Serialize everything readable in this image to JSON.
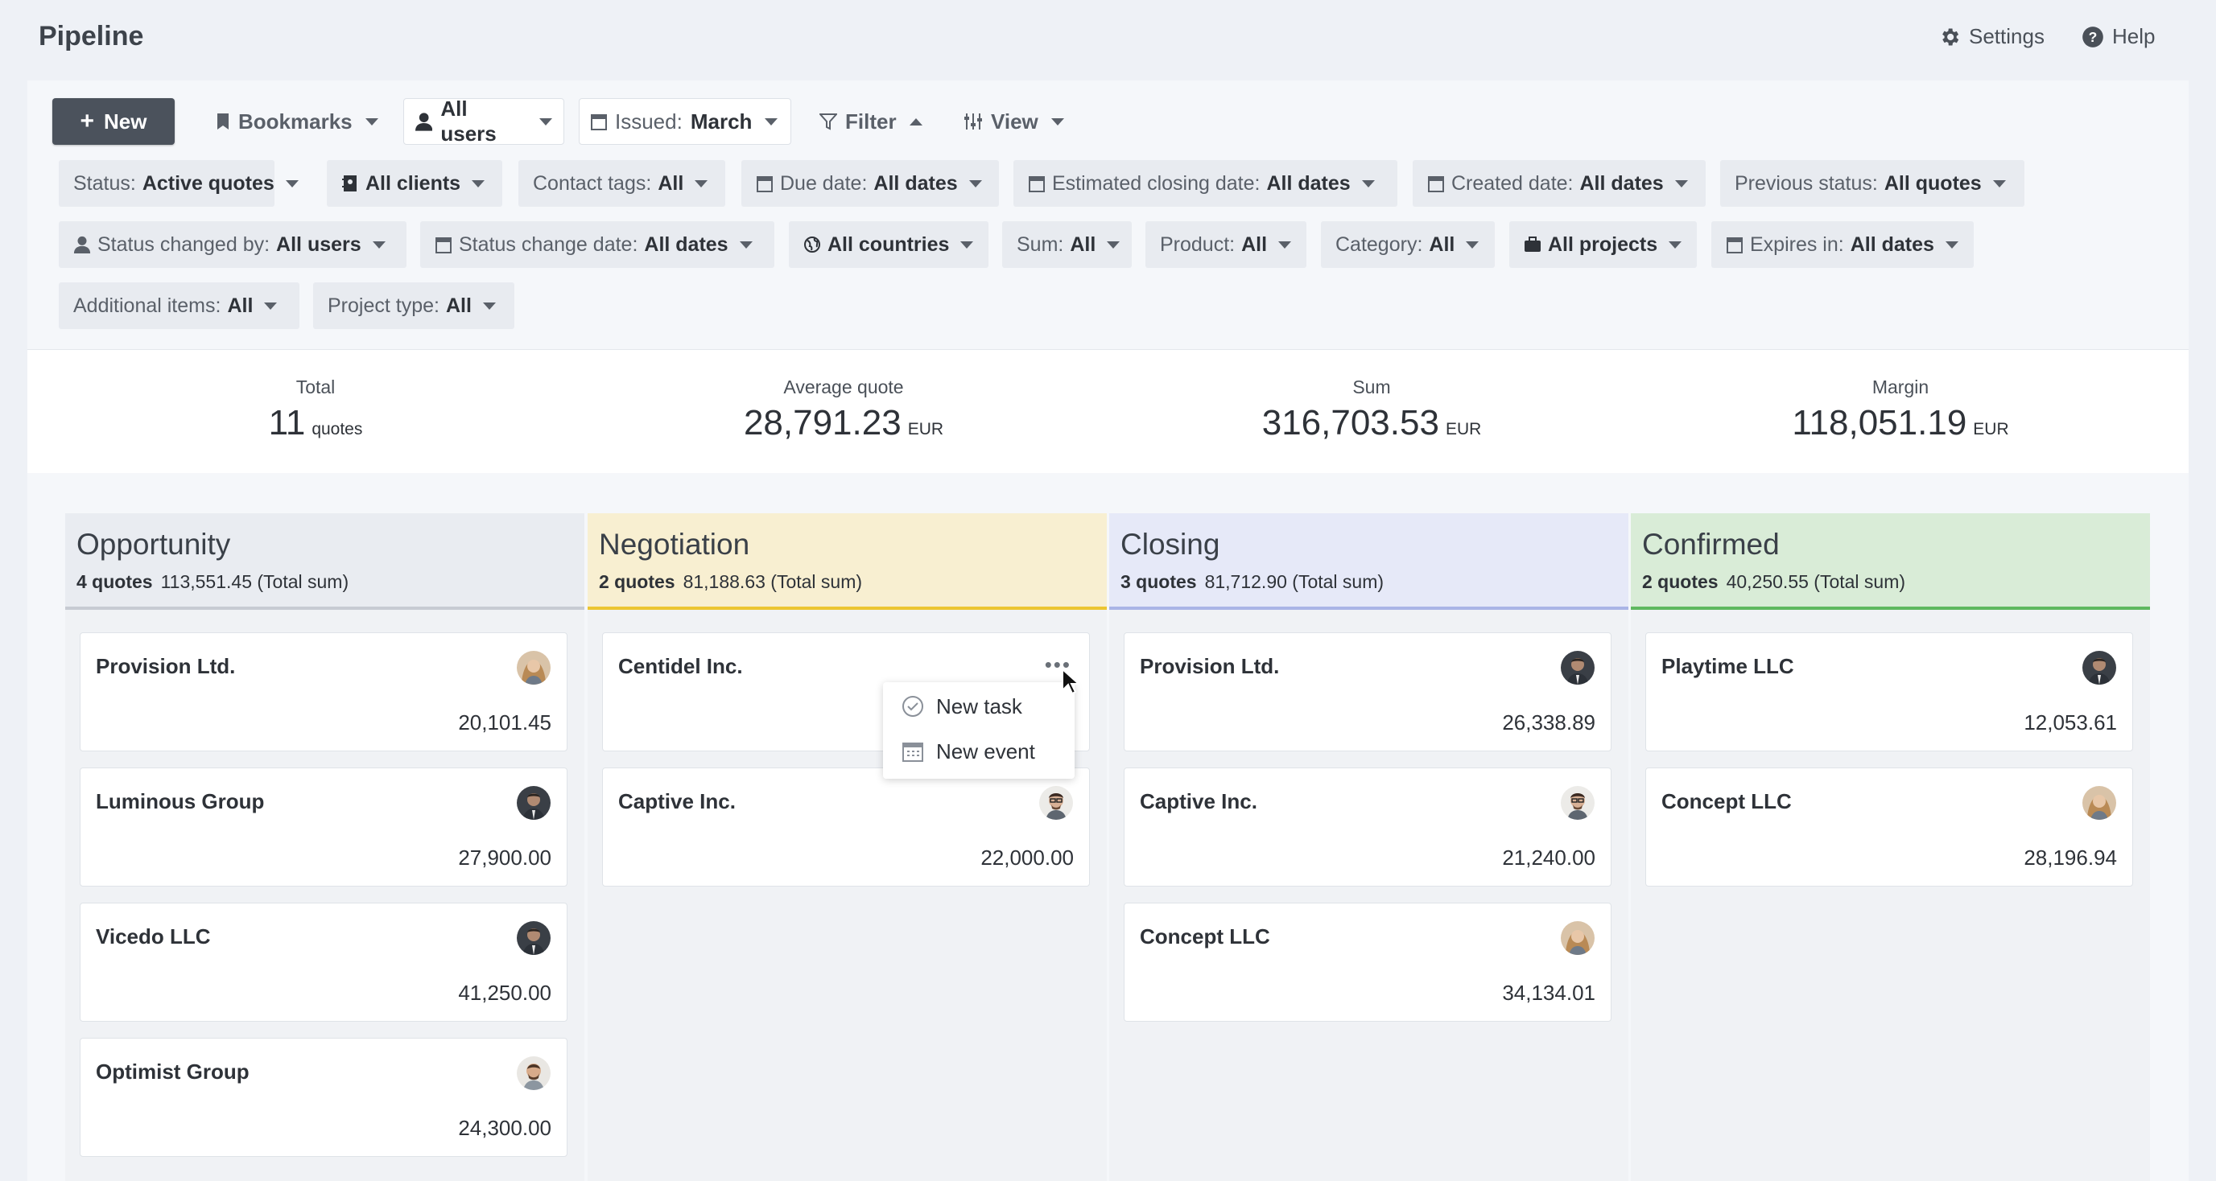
{
  "header": {
    "title": "Pipeline",
    "settings_label": "Settings",
    "help_label": "Help"
  },
  "toolbar": {
    "new_label": "New",
    "bookmarks_label": "Bookmarks",
    "users_label": "All users",
    "issued_prefix": "Issued:",
    "issued_value": "March",
    "filter_label": "Filter",
    "view_label": "View"
  },
  "filters": [
    {
      "prefix": "Status:",
      "value": "Active quotes",
      "icon": ""
    },
    {
      "prefix": "",
      "value": "All clients",
      "icon": "contact-book-icon"
    },
    {
      "prefix": "Contact tags:",
      "value": "All",
      "icon": ""
    },
    {
      "prefix": "Due date:",
      "value": "All dates",
      "icon": "calendar-icon"
    },
    {
      "prefix": "Estimated closing date:",
      "value": "All dates",
      "icon": "calendar-icon"
    },
    {
      "prefix": "Created date:",
      "value": "All dates",
      "icon": "calendar-icon"
    },
    {
      "prefix": "Previous status:",
      "value": "All quotes",
      "icon": ""
    },
    {
      "prefix": "Status changed by:",
      "value": "All users",
      "icon": "user-icon"
    },
    {
      "prefix": "Status change date:",
      "value": "All dates",
      "icon": "calendar-icon"
    },
    {
      "prefix": "",
      "value": "All countries",
      "icon": "globe-icon"
    },
    {
      "prefix": "Sum:",
      "value": "All",
      "icon": ""
    },
    {
      "prefix": "Product:",
      "value": "All",
      "icon": ""
    },
    {
      "prefix": "Category:",
      "value": "All",
      "icon": ""
    },
    {
      "prefix": "",
      "value": "All projects",
      "icon": "briefcase-icon"
    },
    {
      "prefix": "Expires in:",
      "value": "All dates",
      "icon": "calendar-icon"
    },
    {
      "prefix": "Additional items:",
      "value": "All",
      "icon": ""
    },
    {
      "prefix": "Project type:",
      "value": "All",
      "icon": ""
    }
  ],
  "summary": {
    "total": {
      "label": "Total",
      "value": "11",
      "unit": "quotes"
    },
    "average": {
      "label": "Average quote",
      "value": "28,791.23",
      "unit": "EUR"
    },
    "sum": {
      "label": "Sum",
      "value": "316,703.53",
      "unit": "EUR"
    },
    "margin": {
      "label": "Margin",
      "value": "118,051.19",
      "unit": "EUR"
    }
  },
  "columns": [
    {
      "title": "Opportunity",
      "count": "4 quotes",
      "total": "113,551.45 (Total sum)",
      "color": "#c7cbd3",
      "bg": "#e9ecf1",
      "cards": [
        {
          "name": "Provision Ltd.",
          "amount": "20,101.45",
          "avatar": "woman"
        },
        {
          "name": "Luminous Group",
          "amount": "27,900.00",
          "avatar": "man-dark"
        },
        {
          "name": "Vicedo LLC",
          "amount": "41,250.00",
          "avatar": "man-dark"
        },
        {
          "name": "Optimist Group",
          "amount": "24,300.00",
          "avatar": "man-beard"
        }
      ]
    },
    {
      "title": "Negotiation",
      "count": "2 quotes",
      "total": "81,188.63 (Total sum)",
      "color": "#ecc531",
      "bg": "#f8efd1",
      "cards": [
        {
          "name": "Centidel Inc.",
          "amount": "",
          "avatar": ""
        },
        {
          "name": "Captive Inc.",
          "amount": "22,000.00",
          "avatar": "man-glasses"
        }
      ]
    },
    {
      "title": "Closing",
      "count": "3 quotes",
      "total": "81,712.90 (Total sum)",
      "color": "#aab4e6",
      "bg": "#e6e9f8",
      "cards": [
        {
          "name": "Provision Ltd.",
          "amount": "26,338.89",
          "avatar": "man-dark"
        },
        {
          "name": "Captive Inc.",
          "amount": "21,240.00",
          "avatar": "man-glasses"
        },
        {
          "name": "Concept LLC",
          "amount": "34,134.01",
          "avatar": "woman"
        }
      ]
    },
    {
      "title": "Confirmed",
      "count": "2 quotes",
      "total": "40,250.55 (Total sum)",
      "color": "#5fb85f",
      "bg": "#d9ecd7",
      "cards": [
        {
          "name": "Playtime LLC",
          "amount": "12,053.61",
          "avatar": "man-dark"
        },
        {
          "name": "Concept LLC",
          "amount": "28,196.94",
          "avatar": "woman"
        }
      ]
    }
  ],
  "popup": {
    "items": [
      {
        "label": "New task",
        "icon": "check-circle-icon"
      },
      {
        "label": "New event",
        "icon": "calendar-icon"
      }
    ]
  }
}
